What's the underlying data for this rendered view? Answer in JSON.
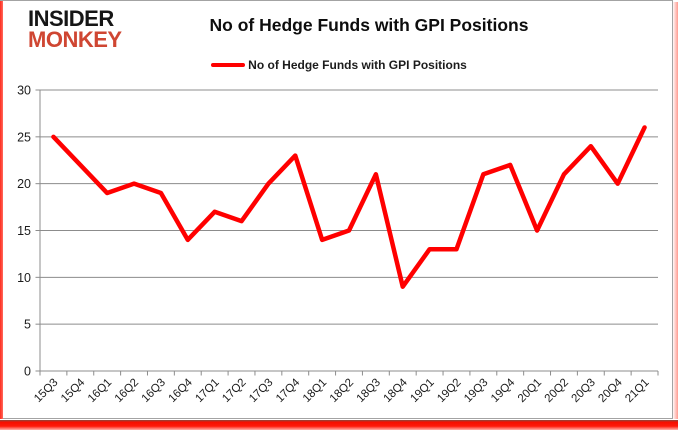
{
  "brand": {
    "line1": "INSIDER",
    "line2": "MONKEY"
  },
  "title": "No of Hedge Funds with GPI Positions",
  "legend": {
    "label": "No of Hedge Funds with GPI Positions"
  },
  "colors": {
    "series": "#ff0000",
    "grid": "#8c8c8c",
    "axis": "#8c8c8c",
    "text": "#1c1c1c",
    "brand_black": "#161616",
    "brand_red": "#cf4632",
    "accent_red": "#ff1a0a"
  },
  "chart_data": {
    "type": "line",
    "title": "No of Hedge Funds with GPI Positions",
    "categories": [
      "15Q3",
      "15Q4",
      "16Q1",
      "16Q2",
      "16Q3",
      "16Q4",
      "17Q1",
      "17Q2",
      "17Q3",
      "17Q4",
      "18Q1",
      "18Q2",
      "18Q3",
      "18Q4",
      "19Q1",
      "19Q2",
      "19Q3",
      "19Q4",
      "20Q1",
      "20Q2",
      "20Q3",
      "20Q4",
      "21Q1"
    ],
    "series": [
      {
        "name": "No of Hedge Funds with GPI Positions",
        "color": "#ff0000",
        "values": [
          25,
          22,
          19,
          20,
          19,
          14,
          17,
          16,
          20,
          23,
          14,
          15,
          21,
          9,
          13,
          13,
          21,
          22,
          15,
          21,
          24,
          20,
          26
        ]
      }
    ],
    "ylim": [
      0,
      30
    ],
    "ytick_step": 5,
    "grid": true,
    "legend_position": "top",
    "xlabel": "",
    "ylabel": ""
  }
}
